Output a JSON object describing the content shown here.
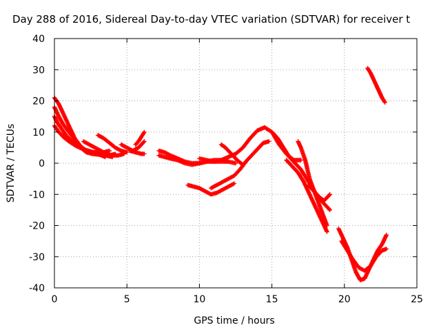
{
  "chart_data": {
    "type": "scatter",
    "title": "Day 288 of 2016, Sidereal Day-to-day VTEC variation (SDTVAR) for receiver t",
    "xlabel": "GPS time / hours",
    "ylabel": "SDTVAR / TECUs",
    "xlim": [
      0,
      25
    ],
    "ylim": [
      -40,
      40
    ],
    "xticks": [
      0,
      5,
      10,
      15,
      20,
      25
    ],
    "yticks": [
      -40,
      -30,
      -20,
      -10,
      0,
      10,
      20,
      30,
      40
    ],
    "grid": true,
    "legend": "none",
    "marker_color": "#ff0000",
    "marker": "plus",
    "series": [
      {
        "x": [
          0.0,
          0.3,
          0.6,
          1.0,
          1.4,
          1.8,
          2.2,
          2.6,
          3.0,
          3.4,
          3.8
        ],
        "y": [
          21,
          19,
          16,
          12,
          8,
          5.5,
          4,
          3.5,
          3.5,
          3.5,
          4
        ]
      },
      {
        "x": [
          0.0,
          0.3,
          0.6,
          1.0,
          1.4,
          1.8,
          2.2,
          2.6,
          3.0,
          3.4,
          3.8,
          4.2
        ],
        "y": [
          18,
          15,
          12.5,
          10,
          7.5,
          5,
          3.5,
          3,
          2.8,
          2.5,
          2.5,
          3
        ]
      },
      {
        "x": [
          0.0,
          0.2,
          0.5,
          0.8,
          1.2,
          1.6,
          2.0,
          2.5,
          3.0,
          3.5,
          4.0
        ],
        "y": [
          15,
          13,
          11,
          9,
          7,
          5.5,
          4.5,
          3.8,
          3.2,
          2.5,
          2
        ]
      },
      {
        "x": [
          0.0,
          0.3,
          0.6,
          1.0,
          1.5,
          2.0,
          2.5,
          3.0,
          3.5
        ],
        "y": [
          12,
          10,
          8.5,
          7,
          5.5,
          4.5,
          3.5,
          3,
          2
        ]
      },
      {
        "x": [
          2.0,
          2.4,
          2.8,
          3.2,
          3.6,
          4.0,
          4.4,
          4.8
        ],
        "y": [
          7,
          6,
          5,
          4,
          3,
          2.5,
          2.5,
          3
        ]
      },
      {
        "x": [
          3.0,
          3.4,
          3.8,
          4.2,
          4.6,
          5.0
        ],
        "y": [
          9,
          8,
          6.5,
          5,
          4,
          3.5
        ]
      },
      {
        "x": [
          4.6,
          5.0,
          5.4,
          5.8,
          6.2
        ],
        "y": [
          6,
          5,
          4,
          5,
          7
        ]
      },
      {
        "x": [
          5.2,
          5.6,
          6.0,
          6.2
        ],
        "y": [
          4,
          3.5,
          3,
          3
        ]
      },
      {
        "x": [
          5.6,
          5.8,
          6.0,
          6.2
        ],
        "y": [
          6,
          7,
          8.5,
          10
        ]
      },
      {
        "x": [
          7.2,
          7.6,
          8.0,
          8.5,
          9.0,
          9.5,
          10.0,
          10.5,
          11.0,
          11.5,
          12.0
        ],
        "y": [
          4,
          3.5,
          2.5,
          1.5,
          0.5,
          0,
          0,
          0.5,
          0.5,
          0.5,
          0.5
        ]
      },
      {
        "x": [
          7.2,
          7.6,
          8.0,
          8.5,
          9.0,
          9.5,
          10.0,
          10.5,
          11.0,
          11.5,
          12.0,
          12.5
        ],
        "y": [
          2.5,
          2,
          1.5,
          1,
          0,
          -0.5,
          0,
          0.5,
          1,
          1,
          0.5,
          0
        ]
      },
      {
        "x": [
          10.0,
          10.5,
          11.0,
          11.5,
          12.0,
          12.5,
          13.0,
          13.5,
          14.0,
          14.5,
          15.0,
          15.5,
          16.0,
          16.5,
          17.0
        ],
        "y": [
          1.5,
          1,
          0.5,
          1,
          2,
          3,
          5,
          8,
          10.5,
          11.5,
          10,
          6,
          3,
          1,
          1
        ]
      },
      {
        "x": [
          11.5,
          11.8,
          12.2,
          12.6,
          13.0
        ],
        "y": [
          6,
          5,
          3,
          1,
          -0.5
        ]
      },
      {
        "x": [
          9.2,
          9.6,
          10.0,
          10.4,
          10.8,
          11.2,
          11.6,
          12.0,
          12.4
        ],
        "y": [
          -7,
          -7.5,
          -8,
          -9,
          -10,
          -9.5,
          -8.5,
          -7.5,
          -6.5
        ]
      },
      {
        "x": [
          10.8,
          11.2,
          11.6,
          12.0,
          12.4,
          12.8,
          13.2,
          13.6,
          14.0,
          14.4,
          14.8
        ],
        "y": [
          -8,
          -7,
          -6,
          -5,
          -4,
          -2,
          0.5,
          2.5,
          4.5,
          6.5,
          7
        ]
      },
      {
        "x": [
          15.0,
          15.4,
          15.8,
          16.2,
          16.6,
          17.0,
          17.4,
          17.8,
          18.2,
          18.6,
          19.0
        ],
        "y": [
          10,
          8,
          5,
          2,
          0,
          -2,
          -5,
          -8,
          -11,
          -13,
          -15
        ]
      },
      {
        "x": [
          16.0,
          16.4,
          16.8,
          17.2,
          17.6,
          18.0,
          18.4,
          18.8
        ],
        "y": [
          1,
          -1,
          -3,
          -6,
          -10,
          -14,
          -18,
          -22
        ]
      },
      {
        "x": [
          16.8,
          17.0,
          17.3,
          17.6,
          18.0,
          18.4,
          18.8
        ],
        "y": [
          7,
          5,
          1,
          -5,
          -10,
          -15,
          -20
        ]
      },
      {
        "x": [
          17.5,
          17.9,
          18.3,
          18.6,
          19.0
        ],
        "y": [
          -7,
          -9,
          -11,
          -12,
          -10
        ]
      },
      {
        "x": [
          19.6,
          19.9,
          20.2,
          20.5,
          20.8,
          21.1,
          21.4,
          21.7,
          22.0,
          22.3,
          22.6,
          22.9
        ],
        "y": [
          -21,
          -24,
          -27,
          -31,
          -35,
          -37.5,
          -37,
          -34,
          -31,
          -28,
          -26,
          -23
        ]
      },
      {
        "x": [
          19.8,
          20.2,
          20.6,
          21.0,
          21.4,
          21.8,
          22.2,
          22.6,
          22.9
        ],
        "y": [
          -25,
          -28,
          -31,
          -33.5,
          -34.5,
          -33,
          -30,
          -28,
          -27.5
        ]
      },
      {
        "x": [
          21.6,
          21.8,
          22.0,
          22.2,
          22.4,
          22.6,
          22.8
        ],
        "y": [
          30.5,
          29,
          27,
          25,
          23,
          21,
          19.5
        ]
      }
    ]
  }
}
